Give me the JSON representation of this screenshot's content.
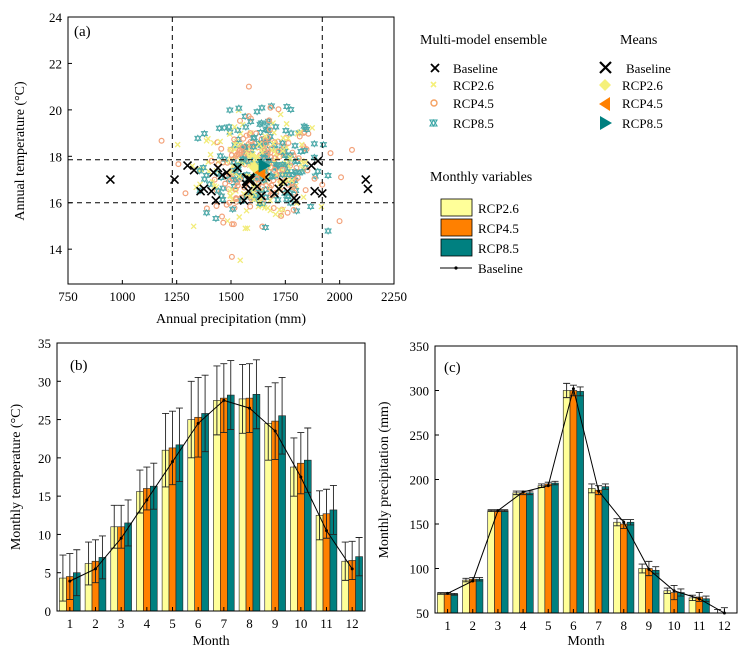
{
  "colors": {
    "rcp26": "#ffff99",
    "rcp45": "#ff8000",
    "rcp85": "#008080",
    "baseline": "#000000"
  },
  "chart_data": [
    {
      "type": "scatter",
      "panel_label": "(a)",
      "xlabel": "Annual precipitation (mm)",
      "ylabel": "Annual temperature (°C)",
      "xlim": [
        750,
        2250
      ],
      "ylim": [
        12.5,
        24
      ],
      "xticks": [
        "750",
        "1000",
        "1250",
        "1500",
        "1750",
        "2000",
        "2250"
      ],
      "yticks": [
        "14",
        "16",
        "18",
        "20",
        "22",
        "24"
      ],
      "reference_lines": {
        "x": [
          1230,
          1920
        ],
        "y": [
          16.0,
          17.85
        ]
      },
      "legend_ensemble_title": "Multi-model ensemble",
      "legend_means_title": "Means",
      "legend_monthly_title": "Monthly variables",
      "series_labels": [
        "Baseline",
        "RCP2.6",
        "RCP4.5",
        "RCP8.5"
      ],
      "baseline": [
        [
          945,
          17.0
        ],
        [
          1240,
          17.0
        ],
        [
          1300,
          17.6
        ],
        [
          1330,
          17.4
        ],
        [
          1360,
          16.5
        ],
        [
          1375,
          16.6
        ],
        [
          1410,
          16.5
        ],
        [
          1420,
          17.3
        ],
        [
          1430,
          16.1
        ],
        [
          1440,
          17.5
        ],
        [
          1460,
          17.2
        ],
        [
          1480,
          17.3
        ],
        [
          1530,
          17.5
        ],
        [
          1560,
          16.1
        ],
        [
          1570,
          16.8
        ],
        [
          1580,
          16.5
        ],
        [
          1590,
          17.0
        ],
        [
          1620,
          16.7
        ],
        [
          1640,
          16.3
        ],
        [
          1660,
          17.1
        ],
        [
          1700,
          16.4
        ],
        [
          1720,
          16.6
        ],
        [
          1740,
          16.9
        ],
        [
          1760,
          16.5
        ],
        [
          1790,
          16.2
        ],
        [
          1800,
          16.1
        ],
        [
          1870,
          17.6
        ],
        [
          1885,
          16.5
        ],
        [
          1900,
          17.8
        ],
        [
          1920,
          16.4
        ],
        [
          2120,
          17.0
        ],
        [
          2130,
          16.6
        ]
      ],
      "means": {
        "baseline": [
          1580,
          17.0
        ],
        "rcp26": [
          1610,
          17.5
        ],
        "rcp45": [
          1635,
          17.3
        ],
        "rcp85": [
          1650,
          17.6
        ]
      },
      "ensemble_cloud": {
        "note": "Approximate scatter of ~200 ensemble members per scenario",
        "rcp26": {
          "center": [
            1615,
            17.5
          ],
          "spread": [
            230,
            1.8
          ]
        },
        "rcp45": {
          "center": [
            1640,
            17.4
          ],
          "spread": [
            240,
            2.0
          ]
        },
        "rcp85": {
          "center": [
            1650,
            17.6
          ],
          "spread": [
            240,
            2.0
          ]
        }
      }
    },
    {
      "type": "bar",
      "panel_label": "(b)",
      "xlabel": "Month",
      "ylabel": "Monthly temperature (°C)",
      "ylim": [
        0,
        35
      ],
      "yticks": [
        "0",
        "5",
        "10",
        "15",
        "20",
        "25",
        "30",
        "35"
      ],
      "categories": [
        "1",
        "2",
        "3",
        "4",
        "5",
        "6",
        "7",
        "8",
        "9",
        "10",
        "11",
        "12"
      ],
      "series": [
        {
          "name": "RCP2.6",
          "values": [
            4.3,
            6.2,
            11.0,
            15.6,
            21.0,
            25.0,
            27.5,
            27.7,
            24.5,
            18.8,
            12.5,
            6.5
          ],
          "errors": [
            3.0,
            2.8,
            2.8,
            2.8,
            4.8,
            5.0,
            4.5,
            4.5,
            4.8,
            3.8,
            3.2,
            2.5
          ]
        },
        {
          "name": "RCP4.5",
          "values": [
            4.5,
            6.5,
            11.0,
            16.0,
            21.3,
            25.3,
            27.8,
            27.8,
            24.8,
            19.3,
            12.7,
            6.6
          ],
          "errors": [
            3.0,
            2.8,
            2.8,
            2.8,
            4.8,
            5.2,
            4.5,
            4.5,
            5.0,
            4.0,
            3.2,
            2.5
          ]
        },
        {
          "name": "RCP8.5",
          "values": [
            5.0,
            7.0,
            11.5,
            16.3,
            21.7,
            25.8,
            28.2,
            28.3,
            25.5,
            19.7,
            13.2,
            7.1
          ],
          "errors": [
            3.0,
            2.8,
            3.0,
            3.0,
            4.8,
            5.0,
            4.5,
            4.5,
            5.0,
            4.2,
            3.2,
            2.5
          ]
        },
        {
          "name": "Baseline",
          "values": [
            3.9,
            5.5,
            9.5,
            14.5,
            19.5,
            24.5,
            27.5,
            26.5,
            23.5,
            17.5,
            10.5,
            5.5
          ]
        }
      ]
    },
    {
      "type": "bar",
      "panel_label": "(c)",
      "xlabel": "Month",
      "ylabel": "Monthly precipitation (mm)",
      "ylim": [
        50,
        350
      ],
      "yticks": [
        "50",
        "100",
        "150",
        "200",
        "250",
        "300",
        "350"
      ],
      "categories": [
        "1",
        "2",
        "3",
        "4",
        "5",
        "6",
        "7",
        "8",
        "9",
        "10",
        "11",
        "12"
      ],
      "series": [
        {
          "name": "RCP2.6",
          "values": [
            72,
            87,
            165,
            185,
            193,
            300,
            190,
            152,
            100,
            75,
            67,
            50
          ],
          "errors": [
            1,
            2,
            1,
            2,
            2,
            8,
            5,
            4,
            5,
            3,
            3,
            4
          ]
        },
        {
          "name": "RCP4.5",
          "values": [
            72,
            88,
            165,
            185,
            195,
            300,
            188,
            150,
            100,
            73,
            68,
            50
          ],
          "errors": [
            1,
            2,
            1,
            2,
            2,
            6,
            5,
            5,
            8,
            8,
            5,
            6
          ]
        },
        {
          "name": "RCP8.5",
          "values": [
            71,
            88,
            165,
            185,
            196,
            299,
            192,
            152,
            98,
            73,
            66,
            48
          ],
          "errors": [
            1,
            2,
            1,
            2,
            2,
            5,
            3,
            3,
            4,
            4,
            3,
            2
          ]
        },
        {
          "name": "Baseline",
          "values": [
            72,
            86,
            165,
            186,
            193,
            302,
            187,
            152,
            99,
            75,
            66,
            50
          ]
        }
      ]
    }
  ]
}
